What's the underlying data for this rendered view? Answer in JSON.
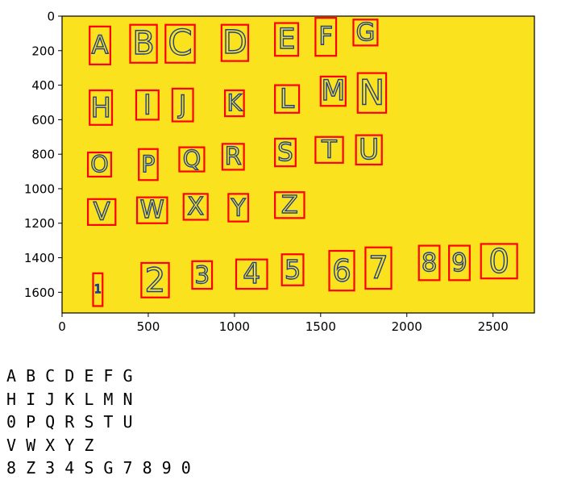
{
  "image_plot": {
    "background_color": "#fbe21f",
    "box_color": "#ff0000",
    "ink_color": "#1f3f8f",
    "x_axis": {
      "range": [
        0,
        2740
      ],
      "ticks": [
        0,
        500,
        1000,
        1500,
        2000,
        2500
      ]
    },
    "y_axis": {
      "range": [
        1720,
        0
      ],
      "ticks": [
        0,
        200,
        400,
        600,
        800,
        1000,
        1200,
        1400,
        1600
      ]
    },
    "detections": [
      {
        "glyph": "A",
        "x": [
          160,
          280
        ],
        "y": [
          60,
          280
        ]
      },
      {
        "glyph": "B",
        "x": [
          395,
          550
        ],
        "y": [
          50,
          270
        ]
      },
      {
        "glyph": "C",
        "x": [
          600,
          770
        ],
        "y": [
          50,
          270
        ]
      },
      {
        "glyph": "D",
        "x": [
          925,
          1080
        ],
        "y": [
          50,
          260
        ]
      },
      {
        "glyph": "E",
        "x": [
          1235,
          1370
        ],
        "y": [
          40,
          230
        ]
      },
      {
        "glyph": "F",
        "x": [
          1470,
          1590
        ],
        "y": [
          10,
          230
        ]
      },
      {
        "glyph": "G",
        "x": [
          1690,
          1830
        ],
        "y": [
          20,
          170
        ]
      },
      {
        "glyph": "H",
        "x": [
          160,
          290
        ],
        "y": [
          430,
          630
        ]
      },
      {
        "glyph": "I",
        "x": [
          430,
          560
        ],
        "y": [
          430,
          600
        ]
      },
      {
        "glyph": "J",
        "x": [
          640,
          760
        ],
        "y": [
          420,
          610
        ]
      },
      {
        "glyph": "K",
        "x": [
          945,
          1055
        ],
        "y": [
          430,
          580
        ]
      },
      {
        "glyph": "L",
        "x": [
          1235,
          1375
        ],
        "y": [
          400,
          560
        ]
      },
      {
        "glyph": "M",
        "x": [
          1500,
          1645
        ],
        "y": [
          350,
          520
        ]
      },
      {
        "glyph": "N",
        "x": [
          1715,
          1880
        ],
        "y": [
          330,
          560
        ]
      },
      {
        "glyph": "O",
        "x": [
          150,
          285
        ],
        "y": [
          790,
          930
        ]
      },
      {
        "glyph": "P",
        "x": [
          445,
          555
        ],
        "y": [
          770,
          950
        ]
      },
      {
        "glyph": "Q",
        "x": [
          680,
          825
        ],
        "y": [
          760,
          900
        ]
      },
      {
        "glyph": "R",
        "x": [
          930,
          1055
        ],
        "y": [
          740,
          890
        ]
      },
      {
        "glyph": "S",
        "x": [
          1235,
          1355
        ],
        "y": [
          710,
          870
        ]
      },
      {
        "glyph": "T",
        "x": [
          1470,
          1630
        ],
        "y": [
          700,
          850
        ]
      },
      {
        "glyph": "U",
        "x": [
          1705,
          1855
        ],
        "y": [
          690,
          860
        ]
      },
      {
        "glyph": "V",
        "x": [
          150,
          310
        ],
        "y": [
          1060,
          1210
        ]
      },
      {
        "glyph": "W",
        "x": [
          435,
          610
        ],
        "y": [
          1050,
          1200
        ]
      },
      {
        "glyph": "X",
        "x": [
          705,
          845
        ],
        "y": [
          1030,
          1180
        ]
      },
      {
        "glyph": "Y",
        "x": [
          965,
          1080
        ],
        "y": [
          1030,
          1190
        ]
      },
      {
        "glyph": "Z",
        "x": [
          1235,
          1405
        ],
        "y": [
          1020,
          1170
        ]
      },
      {
        "glyph": "1",
        "x": [
          180,
          235
        ],
        "y": [
          1490,
          1680
        ]
      },
      {
        "glyph": "2",
        "x": [
          460,
          620
        ],
        "y": [
          1430,
          1630
        ]
      },
      {
        "glyph": "3",
        "x": [
          755,
          870
        ],
        "y": [
          1420,
          1580
        ]
      },
      {
        "glyph": "4",
        "x": [
          1010,
          1190
        ],
        "y": [
          1410,
          1580
        ]
      },
      {
        "glyph": "5",
        "x": [
          1275,
          1400
        ],
        "y": [
          1380,
          1560
        ]
      },
      {
        "glyph": "6",
        "x": [
          1550,
          1695
        ],
        "y": [
          1360,
          1590
        ]
      },
      {
        "glyph": "7",
        "x": [
          1760,
          1910
        ],
        "y": [
          1340,
          1580
        ]
      },
      {
        "glyph": "8",
        "x": [
          2070,
          2190
        ],
        "y": [
          1330,
          1530
        ]
      },
      {
        "glyph": "9",
        "x": [
          2245,
          2365
        ],
        "y": [
          1330,
          1530
        ]
      },
      {
        "glyph": "0",
        "x": [
          2430,
          2640
        ],
        "y": [
          1320,
          1520
        ]
      }
    ]
  },
  "ocr_output": {
    "lines": [
      "A B C D E F G",
      "H I J K L M N",
      "0 P Q R S T U",
      "V W X Y Z",
      "8 Z 3 4 S G 7 8 9 0"
    ]
  }
}
